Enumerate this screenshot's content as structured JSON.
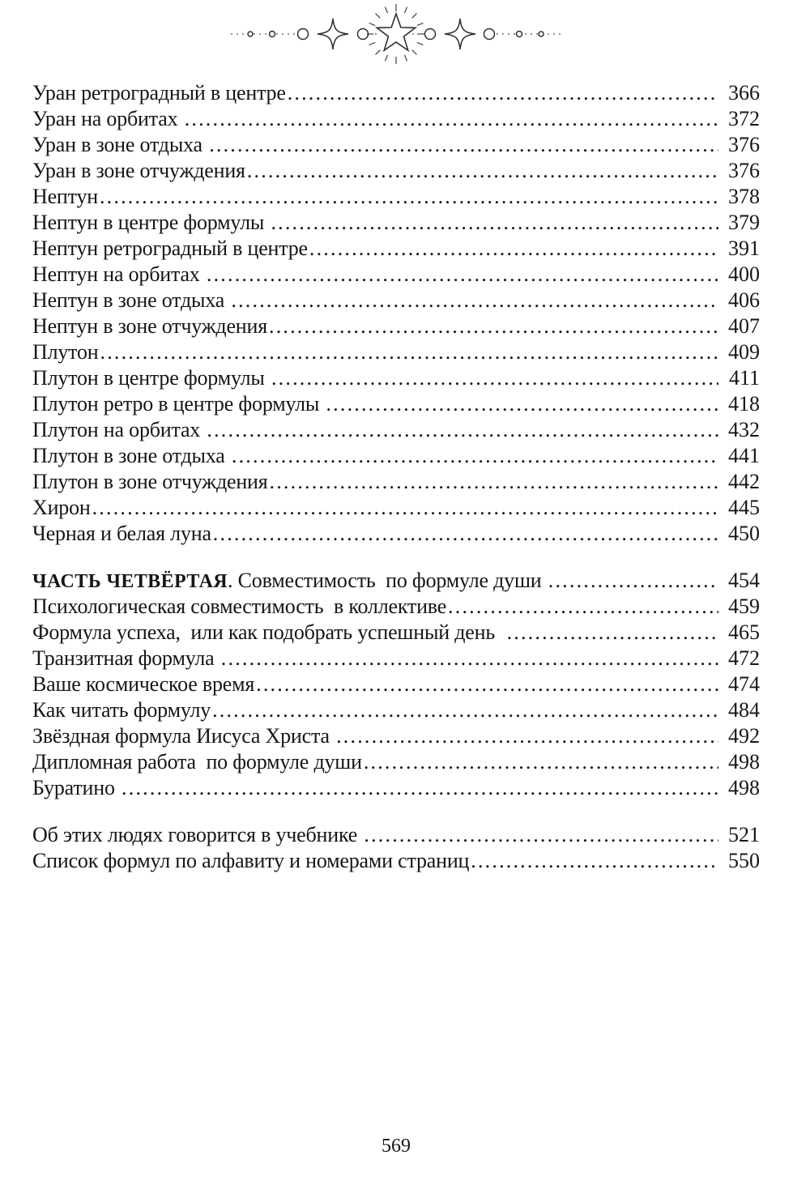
{
  "ornament": {
    "icon": "star-burst-divider"
  },
  "toc": {
    "sections": [
      {
        "entries": [
          {
            "title": "Уран ретроградный в центре",
            "page": "366"
          },
          {
            "title": "Уран на орбитах ",
            "page": "372"
          },
          {
            "title": "Уран в зоне отдыха ",
            "page": "376"
          },
          {
            "title": "Уран в зоне отчуждения",
            "page": "376"
          },
          {
            "title": "Нептун",
            "page": "378"
          },
          {
            "title": "Нептун в центре формулы ",
            "page": "379"
          },
          {
            "title": "Нептун ретроградный в центре",
            "page": "391"
          },
          {
            "title": "Нептун на орбитах ",
            "page": "400"
          },
          {
            "title": "Нептун в зоне отдыха ",
            "page": "406"
          },
          {
            "title": "Нептун в зоне отчуждения",
            "page": "407"
          },
          {
            "title": "Плутон",
            "page": "409"
          },
          {
            "title": "Плутон в центре формулы ",
            "page": "411"
          },
          {
            "title": "Плутон ретро в центре формулы ",
            "page": "418"
          },
          {
            "title": "Плутон на орбитах ",
            "page": "432"
          },
          {
            "title": "Плутон в зоне отдыха ",
            "page": "441"
          },
          {
            "title": "Плутон в зоне отчуждения",
            "page": "442"
          },
          {
            "title": "Хирон",
            "page": "445"
          },
          {
            "title": "Черная и белая луна",
            "page": "450"
          }
        ]
      },
      {
        "entries": [
          {
            "bold": "ЧАСТЬ ЧЕТВЁРТАЯ",
            "title": ". Совместимость  по формуле души ",
            "page": "454"
          },
          {
            "title": "Психологическая совместимость  в коллективе",
            "page": "459"
          },
          {
            "title": "Формула успеха,  или как подобрать успешный день  ",
            "page": "465"
          },
          {
            "title": "Транзитная формула ",
            "page": "472"
          },
          {
            "title": "Ваше космическое время",
            "page": "474"
          },
          {
            "title": "Как читать формулу",
            "page": "484"
          },
          {
            "title": "Звёздная формула Иисуса Христа ",
            "page": "492"
          },
          {
            "title": "Дипломная работа  по формуле души",
            "page": "498"
          },
          {
            "title": "Буратино ",
            "page": "498"
          }
        ]
      },
      {
        "entries": [
          {
            "title": "Об этих людях говорится в учебнике ",
            "page": "521"
          },
          {
            "title": "Список формул по алфавиту и номерами страниц",
            "page": "550"
          }
        ]
      }
    ]
  },
  "footer": {
    "page_number": "569"
  }
}
